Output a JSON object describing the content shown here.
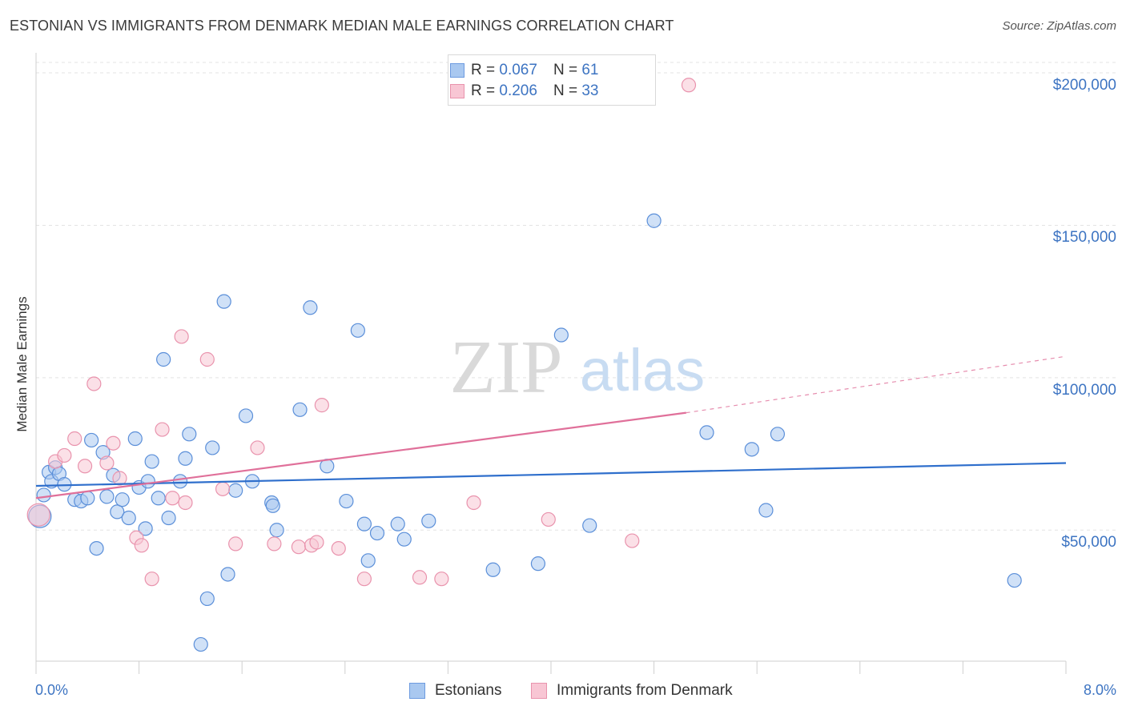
{
  "title": "ESTONIAN VS IMMIGRANTS FROM DENMARK MEDIAN MALE EARNINGS CORRELATION CHART",
  "source": "Source: ZipAtlas.com",
  "watermark": {
    "zip": "ZIP",
    "atlas": "atlas"
  },
  "legend": {
    "r_label": "R =",
    "n_label": "N =",
    "rows": [
      {
        "r": "0.067",
        "n": "61",
        "color": "#a9c8f0",
        "stroke": "#6d9be0"
      },
      {
        "r": "0.206",
        "n": "33",
        "color": "#f8c6d4",
        "stroke": "#e993ad"
      }
    ]
  },
  "chart_data": {
    "type": "scatter",
    "ylabel": "Median Male Earnings",
    "xlim": [
      0,
      8.0
    ],
    "ylim": [
      7000,
      205000
    ],
    "x_tick_labels": [
      "0.0%",
      "8.0%"
    ],
    "y_ticks": [
      {
        "value": 50000,
        "label": "$50,000"
      },
      {
        "value": 100000,
        "label": "$100,000"
      },
      {
        "value": 150000,
        "label": "$150,000"
      },
      {
        "value": 200000,
        "label": "$200,000"
      }
    ],
    "grid": true,
    "legend_position": "top-center",
    "series": [
      {
        "name": "Estonians",
        "color": "#a9c8f0",
        "stroke": "#5b8fd9",
        "trend": {
          "x0": 0.0,
          "y0": 64500,
          "x1": 8.0,
          "y1": 72000,
          "color": "#2f6fcc"
        },
        "points": [
          [
            0.03,
            54500
          ],
          [
            0.06,
            61500
          ],
          [
            0.1,
            69000
          ],
          [
            0.12,
            66000
          ],
          [
            0.15,
            70500
          ],
          [
            0.18,
            68500
          ],
          [
            0.22,
            65000
          ],
          [
            0.3,
            60000
          ],
          [
            0.35,
            59500
          ],
          [
            0.4,
            60500
          ],
          [
            0.43,
            79500
          ],
          [
            0.47,
            44000
          ],
          [
            0.52,
            75500
          ],
          [
            0.55,
            61000
          ],
          [
            0.6,
            68000
          ],
          [
            0.63,
            56000
          ],
          [
            0.67,
            60000
          ],
          [
            0.72,
            54000
          ],
          [
            0.77,
            80000
          ],
          [
            0.8,
            64000
          ],
          [
            0.85,
            50500
          ],
          [
            0.87,
            66000
          ],
          [
            0.9,
            72500
          ],
          [
            0.95,
            60500
          ],
          [
            0.99,
            106000
          ],
          [
            1.03,
            54000
          ],
          [
            1.12,
            66000
          ],
          [
            1.16,
            73500
          ],
          [
            1.19,
            81500
          ],
          [
            1.37,
            77000
          ],
          [
            1.46,
            125000
          ],
          [
            1.49,
            35500
          ],
          [
            1.55,
            63000
          ],
          [
            1.63,
            87500
          ],
          [
            1.68,
            66000
          ],
          [
            1.83,
            59000
          ],
          [
            1.87,
            50000
          ],
          [
            2.05,
            89500
          ],
          [
            2.13,
            123000
          ],
          [
            2.26,
            71000
          ],
          [
            2.41,
            59500
          ],
          [
            2.5,
            115500
          ],
          [
            2.55,
            52000
          ],
          [
            2.65,
            49000
          ],
          [
            2.81,
            52000
          ],
          [
            2.86,
            47000
          ],
          [
            3.05,
            53000
          ],
          [
            3.55,
            37000
          ],
          [
            3.9,
            39000
          ],
          [
            4.08,
            114000
          ],
          [
            4.3,
            51500
          ],
          [
            4.8,
            151500
          ],
          [
            5.21,
            82000
          ],
          [
            5.56,
            76500
          ],
          [
            5.67,
            56500
          ],
          [
            5.76,
            81500
          ],
          [
            7.6,
            33500
          ],
          [
            1.28,
            12500
          ],
          [
            1.33,
            27500
          ],
          [
            1.84,
            58000
          ],
          [
            2.58,
            40000
          ]
        ]
      },
      {
        "name": "Immigrants from Denmark",
        "color": "#f8c6d4",
        "stroke": "#e993ad",
        "trend": {
          "x0": 0.0,
          "y0": 60500,
          "x1": 5.05,
          "y1": 88500,
          "dash_to_x": 8.0,
          "dash_to_y": 107000,
          "color": "#e0709a"
        },
        "points": [
          [
            0.02,
            55000
          ],
          [
            0.15,
            72500
          ],
          [
            0.22,
            74500
          ],
          [
            0.3,
            80000
          ],
          [
            0.38,
            71000
          ],
          [
            0.45,
            98000
          ],
          [
            0.55,
            72000
          ],
          [
            0.6,
            78500
          ],
          [
            0.65,
            67000
          ],
          [
            0.78,
            47500
          ],
          [
            0.82,
            45000
          ],
          [
            0.98,
            83000
          ],
          [
            1.06,
            60500
          ],
          [
            1.13,
            113500
          ],
          [
            1.33,
            106000
          ],
          [
            1.45,
            63500
          ],
          [
            1.55,
            45500
          ],
          [
            1.72,
            77000
          ],
          [
            1.85,
            45500
          ],
          [
            2.04,
            44500
          ],
          [
            2.14,
            45000
          ],
          [
            2.22,
            91000
          ],
          [
            2.35,
            44000
          ],
          [
            2.55,
            34000
          ],
          [
            2.98,
            34500
          ],
          [
            3.15,
            34000
          ],
          [
            3.4,
            59000
          ],
          [
            3.98,
            53500
          ],
          [
            4.63,
            46500
          ],
          [
            5.07,
            196000
          ],
          [
            1.16,
            59000
          ],
          [
            2.18,
            46000
          ],
          [
            0.9,
            34000
          ]
        ]
      }
    ]
  }
}
